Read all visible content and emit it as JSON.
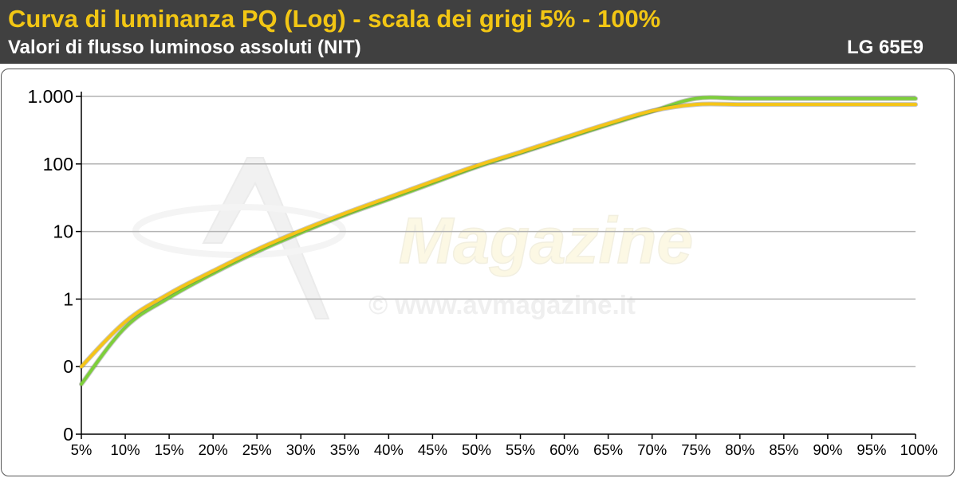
{
  "header": {
    "title": "Curva di luminanza PQ (Log) - scala dei grigi 5% - 100%",
    "subtitle": "Valori di flusso luminoso assoluti (NIT)",
    "model": "LG 65E9"
  },
  "watermark": {
    "brand": "Magazine",
    "url": "© www.avmagazine.it"
  },
  "colors": {
    "header_bg": "#404040",
    "title": "#f2c614",
    "series_measured": "#7dcf3a",
    "series_reference": "#f5c518",
    "grid": "#b3b3b3"
  },
  "chart_data": {
    "type": "line",
    "title": "Curva di luminanza PQ (Log) - scala dei grigi 5% - 100%",
    "subtitle": "Valori di flusso luminoso assoluti (NIT)",
    "xlabel": "",
    "ylabel": "",
    "yscale": "log",
    "ylim": [
      0.01,
      1000
    ],
    "y_ticks": [
      {
        "value": 0.01,
        "label": "0"
      },
      {
        "value": 0.1,
        "label": "0"
      },
      {
        "value": 1,
        "label": "1"
      },
      {
        "value": 10,
        "label": "10"
      },
      {
        "value": 100,
        "label": "100"
      },
      {
        "value": 1000,
        "label": "1.000"
      }
    ],
    "grid": true,
    "legend": "none",
    "categories": [
      "5%",
      "10%",
      "15%",
      "20%",
      "25%",
      "30%",
      "35%",
      "40%",
      "45%",
      "50%",
      "55%",
      "60%",
      "65%",
      "70%",
      "75%",
      "80%",
      "85%",
      "90%",
      "95%",
      "100%"
    ],
    "series": [
      {
        "color": "#7dcf3a",
        "values": [
          0.055,
          0.38,
          1.05,
          2.4,
          5.0,
          9.6,
          17.5,
          30,
          52,
          90,
          145,
          235,
          380,
          600,
          930,
          930,
          930,
          930,
          930,
          930
        ]
      },
      {
        "color": "#f5c518",
        "values": [
          0.1,
          0.46,
          1.2,
          2.6,
          5.4,
          10.3,
          18.5,
          32,
          55,
          94,
          150,
          245,
          395,
          610,
          760,
          760,
          760,
          760,
          760,
          760
        ]
      }
    ]
  }
}
